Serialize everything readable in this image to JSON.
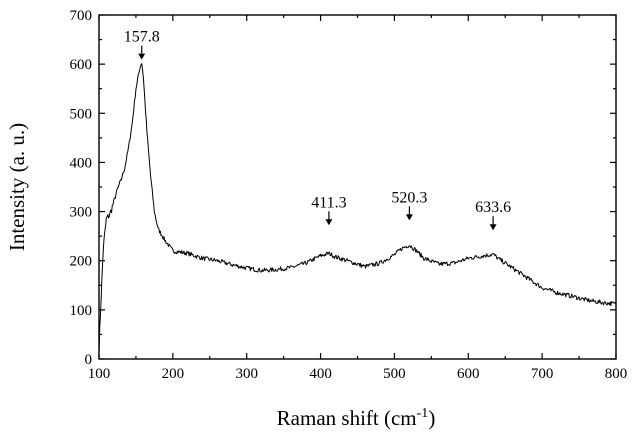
{
  "chart_data": {
    "type": "line",
    "title": "",
    "xlabel_main": "Raman shift (cm",
    "xlabel_sup": "-1",
    "xlabel_end": ")",
    "ylabel": "Intensity (a. u.)",
    "xlim": [
      100,
      800
    ],
    "ylim": [
      0,
      700
    ],
    "x_ticks": [
      100,
      200,
      300,
      400,
      500,
      600,
      700,
      800
    ],
    "y_ticks": [
      0,
      100,
      200,
      300,
      400,
      500,
      600,
      700
    ],
    "grid": false,
    "legend": "none",
    "series": [
      {
        "x": [
          100,
          103,
          106,
          110,
          115,
          120,
          125,
          130,
          135,
          140,
          145,
          150,
          155,
          157.8,
          160,
          165,
          170,
          175,
          180,
          190,
          200,
          220,
          240,
          260,
          280,
          300,
          320,
          340,
          360,
          380,
          400,
          411.3,
          420,
          440,
          460,
          480,
          500,
          510,
          520.3,
          530,
          540,
          560,
          580,
          600,
          620,
          633.6,
          640,
          660,
          680,
          700,
          720,
          740,
          760,
          780,
          800
        ],
        "y": [
          20,
          130,
          230,
          285,
          295,
          320,
          345,
          365,
          390,
          430,
          480,
          550,
          590,
          605,
          575,
          460,
          370,
          300,
          265,
          240,
          220,
          215,
          205,
          200,
          192,
          185,
          180,
          182,
          186,
          195,
          210,
          215,
          208,
          198,
          188,
          195,
          212,
          225,
          232,
          220,
          205,
          193,
          195,
          205,
          210,
          213,
          205,
          185,
          165,
          145,
          135,
          128,
          120,
          115,
          112
        ]
      }
    ],
    "annotations": [
      {
        "x": 157.8,
        "y": 605,
        "label": "157.8"
      },
      {
        "x": 411.3,
        "y": 268,
        "label": "411.3"
      },
      {
        "x": 520.3,
        "y": 278,
        "label": "520.3"
      },
      {
        "x": 633.6,
        "y": 258,
        "label": "633.6"
      }
    ]
  }
}
